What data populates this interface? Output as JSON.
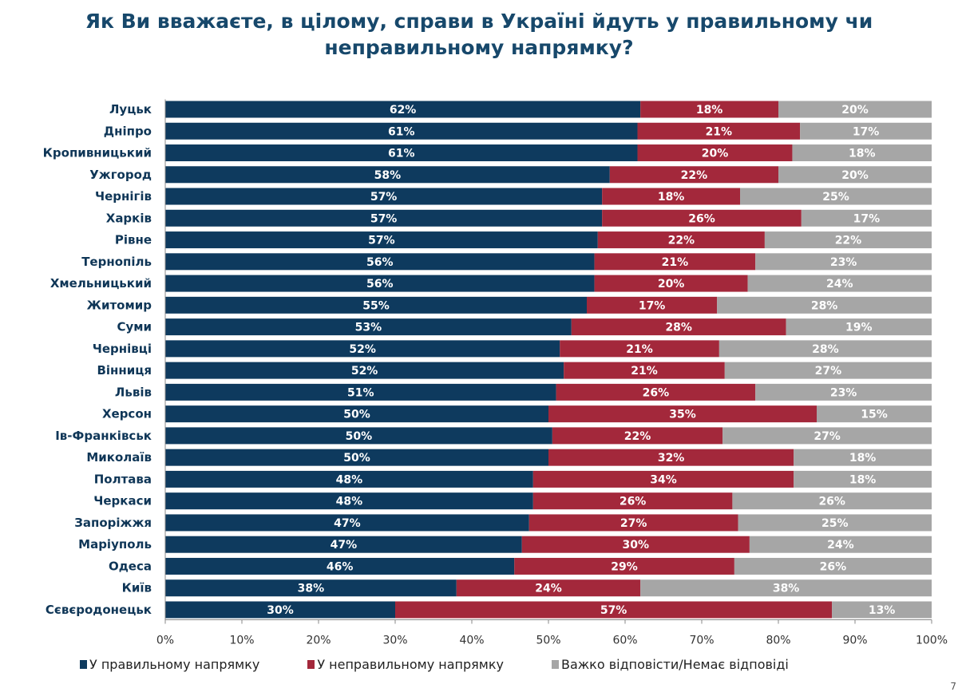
{
  "title": "Як Ви вважаєте, в цілому, справи в Україні йдуть у правильному чи неправильному напрямку?",
  "page_number": "7",
  "chart_data": {
    "type": "bar",
    "orientation": "horizontal",
    "stacked": "100%",
    "categories": [
      "Луцьк",
      "Дніпро",
      "Кропивницький",
      "Ужгород",
      "Чернігів",
      "Харків",
      "Рівне",
      "Тернопіль",
      "Хмельницький",
      "Житомир",
      "Суми",
      "Чернівці",
      "Вінниця",
      "Львів",
      "Херсон",
      "Ів-Франківськ",
      "Миколаїв",
      "Полтава",
      "Черкаси",
      "Запоріжжя",
      "Маріуполь",
      "Одеса",
      "Київ",
      "Сєвєродонецьк"
    ],
    "series": [
      {
        "name": "У правильному напрямку",
        "color": "#0e3a5e",
        "values": [
          62,
          61,
          61,
          58,
          57,
          57,
          57,
          56,
          56,
          55,
          53,
          52,
          52,
          51,
          50,
          50,
          50,
          48,
          48,
          47,
          47,
          46,
          38,
          30
        ]
      },
      {
        "name": "У неправильному напрямку",
        "color": "#a3283b",
        "values": [
          18,
          21,
          20,
          22,
          18,
          26,
          22,
          21,
          20,
          17,
          28,
          21,
          21,
          26,
          35,
          22,
          32,
          34,
          26,
          27,
          30,
          29,
          24,
          57
        ]
      },
      {
        "name": "Важко відповісти/Немає відповіді",
        "color": "#a6a6a6",
        "values": [
          20,
          17,
          18,
          20,
          25,
          17,
          22,
          23,
          24,
          28,
          19,
          28,
          27,
          23,
          15,
          27,
          18,
          18,
          26,
          25,
          24,
          26,
          38,
          13
        ]
      }
    ],
    "xlim": [
      0,
      100
    ],
    "xticks": [
      "0%",
      "10%",
      "20%",
      "30%",
      "40%",
      "50%",
      "60%",
      "70%",
      "80%",
      "90%",
      "100%"
    ],
    "grid": false,
    "legend": "bottom"
  }
}
